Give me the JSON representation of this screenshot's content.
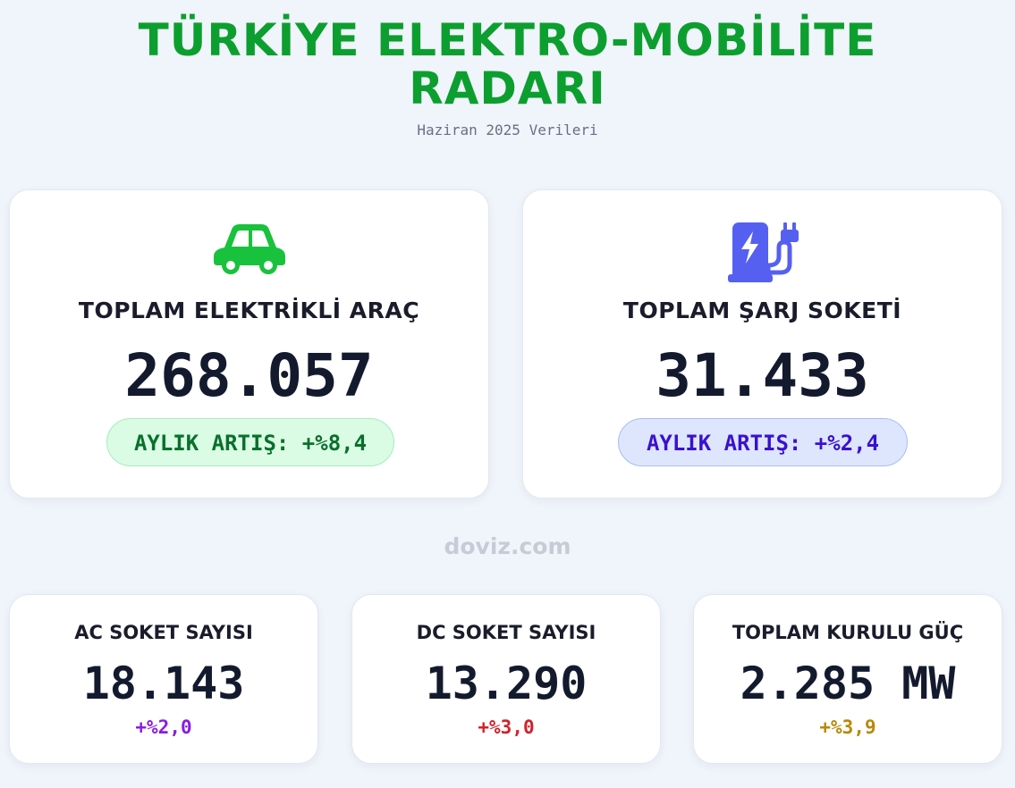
{
  "header": {
    "title": "TÜRKİYE ELEKTRO-MOBİLİTE RADARI",
    "subtitle": "Haziran 2025 Verileri"
  },
  "main_cards": [
    {
      "icon": "car-icon",
      "icon_color": "#19c23d",
      "label": "TOPLAM ELEKTRİKLİ ARAÇ",
      "value": "268.057",
      "change": "AYLIK ARTIŞ: +%8,4"
    },
    {
      "icon": "ev-charging-station-icon",
      "icon_color": "#5560f0",
      "label": "TOPLAM ŞARJ SOKETİ",
      "value": "31.433",
      "change": "AYLIK ARTIŞ: +%2,4"
    }
  ],
  "watermark": "doviz.com",
  "small_cards": [
    {
      "label": "AC SOKET SAYISI",
      "value": "18.143",
      "change": "+%2,0",
      "change_color": "#8a1ce0"
    },
    {
      "label": "DC SOKET SAYISI",
      "value": "13.290",
      "change": "+%3,0",
      "change_color": "#d2222a"
    },
    {
      "label": "TOPLAM KURULU GÜÇ",
      "value": "2.285 MW",
      "change": "+%3,9",
      "change_color": "#b68a06"
    }
  ],
  "colors": {
    "title": "#0c9f2f",
    "background": "#f0f4fb",
    "ev_pill_bg": "#dafbe4",
    "ev_pill_text": "#08702b",
    "socket_pill_bg": "#dde6fd",
    "socket_pill_text": "#3a10d0"
  }
}
